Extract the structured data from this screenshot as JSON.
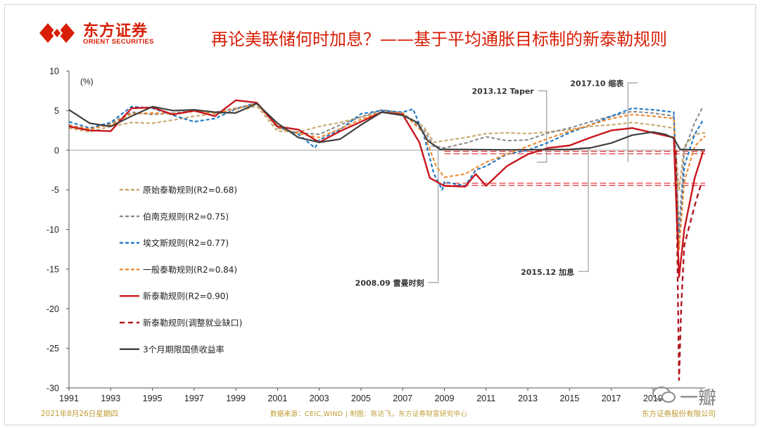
{
  "header": {
    "brand_cn": "东方证券",
    "brand_en": "ORIENT SECURITIES",
    "title": "再论美联储何时加息？——基于平均通胀目标制的新泰勒规则"
  },
  "footer": {
    "date": "2021年8月26日星期四",
    "source": "数据来源：CEIC,WIND | 制图：陈达飞，东方证券财富研究中心",
    "company": "东方证券股份有限公司"
  },
  "watermark": "一瓣",
  "chart_data": {
    "type": "line",
    "unit_label": "(%)",
    "ylim": [
      -30,
      10
    ],
    "y_ticks": [
      10,
      5,
      0,
      -5,
      -10,
      -15,
      -20,
      -25,
      -30
    ],
    "xlim": [
      1991,
      2021.5
    ],
    "x_ticks": [
      "1991",
      "1993",
      "1995",
      "1997",
      "1999",
      "2001",
      "2003",
      "2005",
      "2007",
      "2009",
      "2011",
      "2013",
      "2015",
      "2017",
      "2019"
    ],
    "x_tick_values": [
      1991,
      1993,
      1995,
      1997,
      1999,
      2001,
      2003,
      2005,
      2007,
      2009,
      2011,
      2013,
      2015,
      2017,
      2019
    ],
    "colors": {
      "original": "#c9a86b",
      "bernanke": "#8c8c8c",
      "evans": "#1f77c4",
      "general": "#ed8a2f",
      "new": "#c8161d",
      "new_adj": "#b0171f",
      "tbill": "#404040"
    },
    "series": [
      {
        "key": "original",
        "name": "原始泰勒规则(R2=0.68)",
        "style": "dashed",
        "x": [
          1991,
          1992,
          1993,
          1994,
          1995,
          1996,
          1997,
          1998,
          1999,
          2000,
          2001,
          2002,
          2003,
          2004,
          2005,
          2006,
          2007,
          2008,
          2008.5,
          2009,
          2010,
          2011,
          2012,
          2013,
          2014,
          2015,
          2016,
          2017,
          2018,
          2019,
          2020,
          2020.25,
          2020.5,
          2021,
          2021.5
        ],
        "y": [
          2.8,
          2.3,
          3.0,
          3.5,
          3.4,
          3.8,
          4.3,
          4.6,
          4.8,
          5.6,
          2.4,
          2.3,
          3.0,
          3.5,
          4.2,
          4.8,
          4.6,
          3.0,
          1.0,
          1.2,
          1.6,
          2.1,
          2.2,
          2.1,
          2.3,
          2.6,
          3.0,
          3.2,
          3.5,
          3.2,
          2.8,
          -5.0,
          0.5,
          2.0,
          2.2
        ]
      },
      {
        "key": "bernanke",
        "name": "伯南克规则(R2=0.75)",
        "style": "dashed",
        "x": [
          1991,
          1992,
          1993,
          1994,
          1995,
          1996,
          1997,
          1998,
          1999,
          2000,
          2001,
          2002,
          2003,
          2004,
          2005,
          2006,
          2007,
          2008,
          2008.5,
          2009,
          2010,
          2011,
          2012,
          2013,
          2014,
          2015,
          2016,
          2017,
          2018,
          2019,
          2020,
          2020.25,
          2020.5,
          2021,
          2021.4
        ],
        "y": [
          3.2,
          2.6,
          3.4,
          4.8,
          4.5,
          4.7,
          5.0,
          4.8,
          5.3,
          5.9,
          2.8,
          2.2,
          2.0,
          3.2,
          4.2,
          5.1,
          4.7,
          2.6,
          0.5,
          0.3,
          0.9,
          1.7,
          1.2,
          1.3,
          2.2,
          2.8,
          3.6,
          4.3,
          4.9,
          4.7,
          4.3,
          -10.0,
          0.0,
          3.5,
          5.5
        ]
      },
      {
        "key": "evans",
        "name": "埃文斯规则(R2=0.77)",
        "style": "dashed",
        "x": [
          1991,
          1992,
          1993,
          1994,
          1995,
          1996,
          1997,
          1998,
          1999,
          2000,
          2001,
          2002,
          2002.8,
          2003,
          2004,
          2005,
          2006,
          2007,
          2007.5,
          2008,
          2008.5,
          2008.9,
          2009,
          2010,
          2010.5,
          2011,
          2012,
          2013,
          2014,
          2015,
          2016,
          2017,
          2018,
          2019,
          2020,
          2020.25,
          2020.5,
          2021,
          2021.4
        ],
        "y": [
          3.6,
          2.8,
          3.5,
          5.5,
          5.3,
          4.4,
          3.6,
          4.0,
          5.2,
          6.0,
          3.0,
          2.0,
          0.3,
          1.3,
          2.6,
          4.6,
          5.0,
          4.8,
          5.2,
          2.0,
          -3.0,
          -5.0,
          -4.0,
          -4.5,
          -2.5,
          -2.0,
          -0.5,
          0.0,
          1.0,
          2.2,
          3.2,
          4.3,
          5.3,
          5.1,
          4.8,
          -12.0,
          -2.0,
          2.0,
          3.8
        ]
      },
      {
        "key": "general",
        "name": "一般泰勒规则(R2=0.84)",
        "style": "dashed",
        "x": [
          1991,
          1992,
          1993,
          1994,
          1995,
          1996,
          1997,
          1998,
          1999,
          2000,
          2001,
          2002,
          2003,
          2004,
          2005,
          2006,
          2007,
          2008,
          2008.6,
          2009,
          2010,
          2011,
          2012,
          2013,
          2014,
          2015,
          2016,
          2017,
          2018,
          2019,
          2020,
          2020.25,
          2020.5,
          2021,
          2021.5
        ],
        "y": [
          3.1,
          2.7,
          3.2,
          4.6,
          4.7,
          4.6,
          4.9,
          4.7,
          5.2,
          5.9,
          2.9,
          2.1,
          1.6,
          2.7,
          3.9,
          4.8,
          4.7,
          2.2,
          -2.0,
          -3.4,
          -3.0,
          -1.5,
          -0.5,
          0.5,
          1.5,
          2.4,
          3.2,
          4.0,
          4.5,
          4.3,
          4.0,
          -12.5,
          -4.0,
          0.5,
          1.8
        ]
      },
      {
        "key": "new",
        "name": "新泰勒规则(R2=0.90)",
        "style": "solid",
        "x": [
          1991,
          1992,
          1993,
          1994,
          1995,
          1996,
          1997,
          1998,
          1999,
          2000,
          2001,
          2002,
          2003,
          2004,
          2005,
          2006,
          2007,
          2007.8,
          2008.3,
          2009,
          2010,
          2010.5,
          2011,
          2012,
          2013,
          2014,
          2015,
          2016,
          2017,
          2018,
          2019,
          2020,
          2020.25,
          2020.5,
          2021,
          2021.4
        ],
        "y": [
          3.0,
          2.5,
          2.4,
          5.3,
          5.4,
          4.5,
          5.0,
          4.3,
          6.3,
          6.0,
          3.0,
          2.6,
          1.0,
          2.4,
          3.6,
          4.8,
          4.5,
          1.0,
          -3.5,
          -4.5,
          -4.6,
          -3.0,
          -4.5,
          -2.0,
          -0.5,
          0.3,
          0.6,
          1.6,
          2.5,
          2.8,
          2.2,
          1.6,
          -16.0,
          -10.0,
          -3.5,
          -0.2
        ]
      },
      {
        "key": "new_adj",
        "name": "新泰勒规则(调整就业缺口)",
        "style": "dashed",
        "x": [
          2020.1,
          2020.25,
          2020.35,
          2020.5,
          2020.7,
          2021,
          2021.3
        ],
        "y": [
          0.0,
          -29.0,
          -20.0,
          -12.0,
          -10.0,
          -7.0,
          -4.3
        ]
      },
      {
        "key": "tbill",
        "name": "3个月期限国债收益率",
        "style": "solid",
        "x": [
          1991,
          1992,
          1993,
          1994,
          1995,
          1996,
          1997,
          1998,
          1999,
          2000,
          2001,
          2002,
          2003,
          2004,
          2005,
          2006,
          2007,
          2007.7,
          2008.2,
          2008.8,
          2009,
          2012,
          2015,
          2016,
          2017,
          2018,
          2019,
          2019.6,
          2020,
          2020.3,
          2021,
          2021.5
        ],
        "y": [
          5.1,
          3.4,
          3.0,
          4.3,
          5.5,
          5.0,
          5.1,
          4.8,
          4.7,
          5.9,
          3.4,
          1.6,
          1.0,
          1.4,
          3.2,
          4.8,
          4.4,
          3.5,
          1.2,
          0.1,
          0.1,
          0.05,
          0.1,
          0.3,
          0.9,
          1.9,
          2.3,
          2.0,
          1.5,
          0.1,
          0.05,
          0.05
        ]
      }
    ],
    "reference_lines": [
      {
        "x_start": 2009,
        "x_end": 2021.5,
        "y": -0.3,
        "color": "#e3403f"
      },
      {
        "x_start": 2009,
        "x_end": 2021.5,
        "y": -4.3,
        "color": "#e3403f"
      }
    ],
    "annotations": [
      {
        "text": "2008.09 雷曼时刻",
        "x": 2008.7,
        "y_top": 0.5,
        "y_end": -16.7,
        "label_side": "left"
      },
      {
        "text": "2013.12 Taper",
        "x": 2013.9,
        "y_top": 7.5,
        "y_end": -1.5,
        "label_side": "left"
      },
      {
        "text": "2017.10 缩表",
        "x": 2017.8,
        "y_top": 8.5,
        "y_end": -1.5,
        "label_side": "right"
      },
      {
        "text": "2015.12 加息",
        "x": 2015.9,
        "y_top": 0.3,
        "y_end": -15.3,
        "label_side": "left"
      }
    ]
  }
}
